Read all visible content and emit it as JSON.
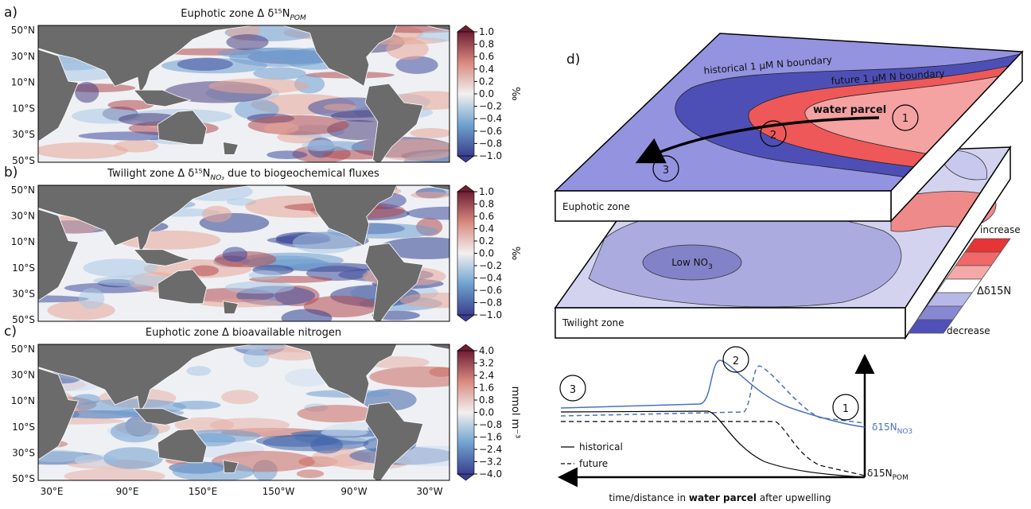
{
  "panels": [
    {
      "label": "a)",
      "title": "Euphotic zone Δ δ¹⁵N",
      "title_sub": "POM",
      "colorbar_ticks": [
        "1.0",
        "0.8",
        "0.6",
        "0.4",
        "0.2",
        "0.0",
        "−0.2",
        "−0.4",
        "−0.6",
        "−0.8",
        "−1.0"
      ],
      "colorbar_unit": "‰"
    },
    {
      "label": "b)",
      "title": "Twilight zone Δ δ¹⁵N",
      "title_sub": "NO₃",
      "title_rest": " due to biogeochemical fluxes",
      "colorbar_ticks": [
        "1.0",
        "0.8",
        "0.6",
        "0.4",
        "0.2",
        "0.0",
        "−0.2",
        "−0.4",
        "−0.6",
        "−0.8",
        "−1.0"
      ],
      "colorbar_unit": "‰"
    },
    {
      "label": "c)",
      "title": "Euphotic zone Δ bioavailable nitrogen",
      "colorbar_ticks": [
        "4.0",
        "3.2",
        "2.4",
        "1.6",
        "0.8",
        "0.0",
        "−0.8",
        "−1.6",
        "−2.4",
        "−3.2",
        "−4.0"
      ],
      "colorbar_unit": "mmol m⁻³"
    }
  ],
  "lat_labels": [
    "50°N",
    "30°N",
    "10°N",
    "10°S",
    "30°S",
    "50°S"
  ],
  "lon_labels": [
    "30°E",
    "90°E",
    "150°E",
    "150°W",
    "90°W",
    "30°W"
  ],
  "diagram": {
    "label": "d)",
    "historical_boundary": "historical 1 μM N boundary",
    "future_boundary": "future 1 μM N boundary",
    "water_parcel": "water parcel",
    "steps": [
      "1",
      "2",
      "3"
    ],
    "euphotic_zone": "Euphotic zone",
    "twilight_zone": "Twilight zone",
    "low_no3": "Low NO",
    "low_no3_sub": "3",
    "increase": "increase",
    "decrease": "decrease",
    "delta_label": "Δδ15N",
    "legend": [
      "historical",
      "future"
    ],
    "no3_label": "δ15N",
    "no3_sub": "NO3",
    "pom_label": "δ15N",
    "pom_sub": "POM",
    "xlabel_parts": [
      "time/distance in ",
      "water parcel",
      " after upwelling"
    ]
  }
}
